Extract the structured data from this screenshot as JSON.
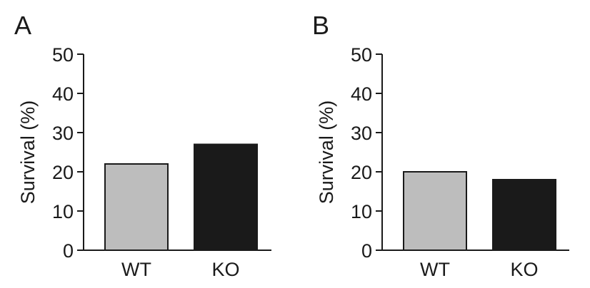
{
  "chart_data": [
    {
      "type": "bar",
      "panel_label": "A",
      "title": "",
      "xlabel": "",
      "ylabel": "Survival (%)",
      "categories": [
        "WT",
        "KO"
      ],
      "values": [
        22,
        27
      ],
      "colors": [
        "#bdbdbd",
        "#1a1a1a"
      ],
      "ylim": [
        0,
        50
      ],
      "yticks": [
        0,
        10,
        20,
        30,
        40,
        50
      ],
      "grid": false
    },
    {
      "type": "bar",
      "panel_label": "B",
      "title": "",
      "xlabel": "",
      "ylabel": "Survival (%)",
      "categories": [
        "WT",
        "KO"
      ],
      "values": [
        20,
        18
      ],
      "colors": [
        "#bdbdbd",
        "#1a1a1a"
      ],
      "ylim": [
        0,
        50
      ],
      "yticks": [
        0,
        10,
        20,
        30,
        40,
        50
      ],
      "grid": false
    }
  ]
}
